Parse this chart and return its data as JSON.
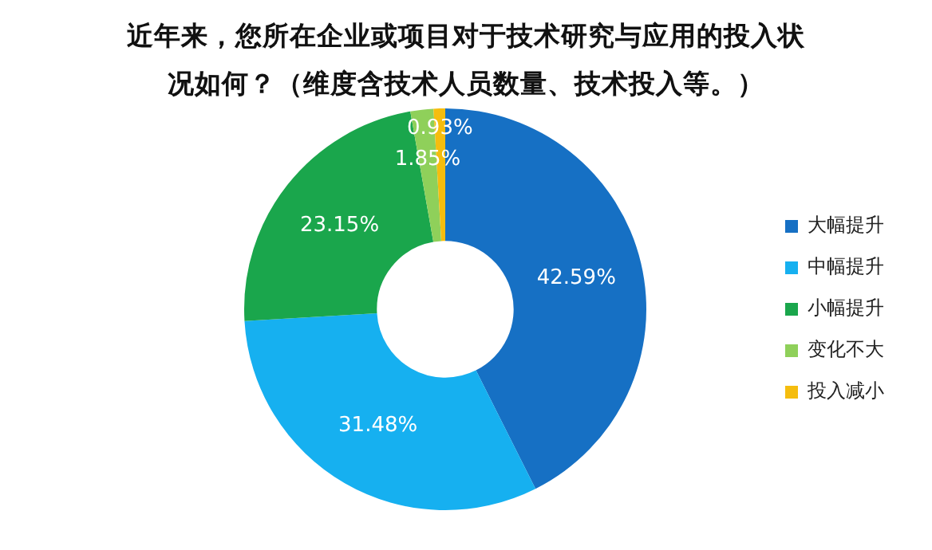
{
  "chart_data": {
    "type": "donut",
    "title": "近年来，您所在企业或项目对于技术研究与应用的投入状况如何？（维度含技术人员数量、技术投入等。）",
    "categories": [
      "大幅提升",
      "中幅提升",
      "小幅提升",
      "变化不大",
      "投入减小"
    ],
    "values": [
      42.59,
      31.48,
      23.15,
      1.85,
      0.93
    ],
    "value_labels": [
      "42.59%",
      "31.48%",
      "23.15%",
      "1.85%",
      "0.93%"
    ],
    "colors": [
      "#1670c4",
      "#16b0f0",
      "#1aa64c",
      "#8fd05a",
      "#f5bd0e"
    ],
    "legend": "right"
  }
}
